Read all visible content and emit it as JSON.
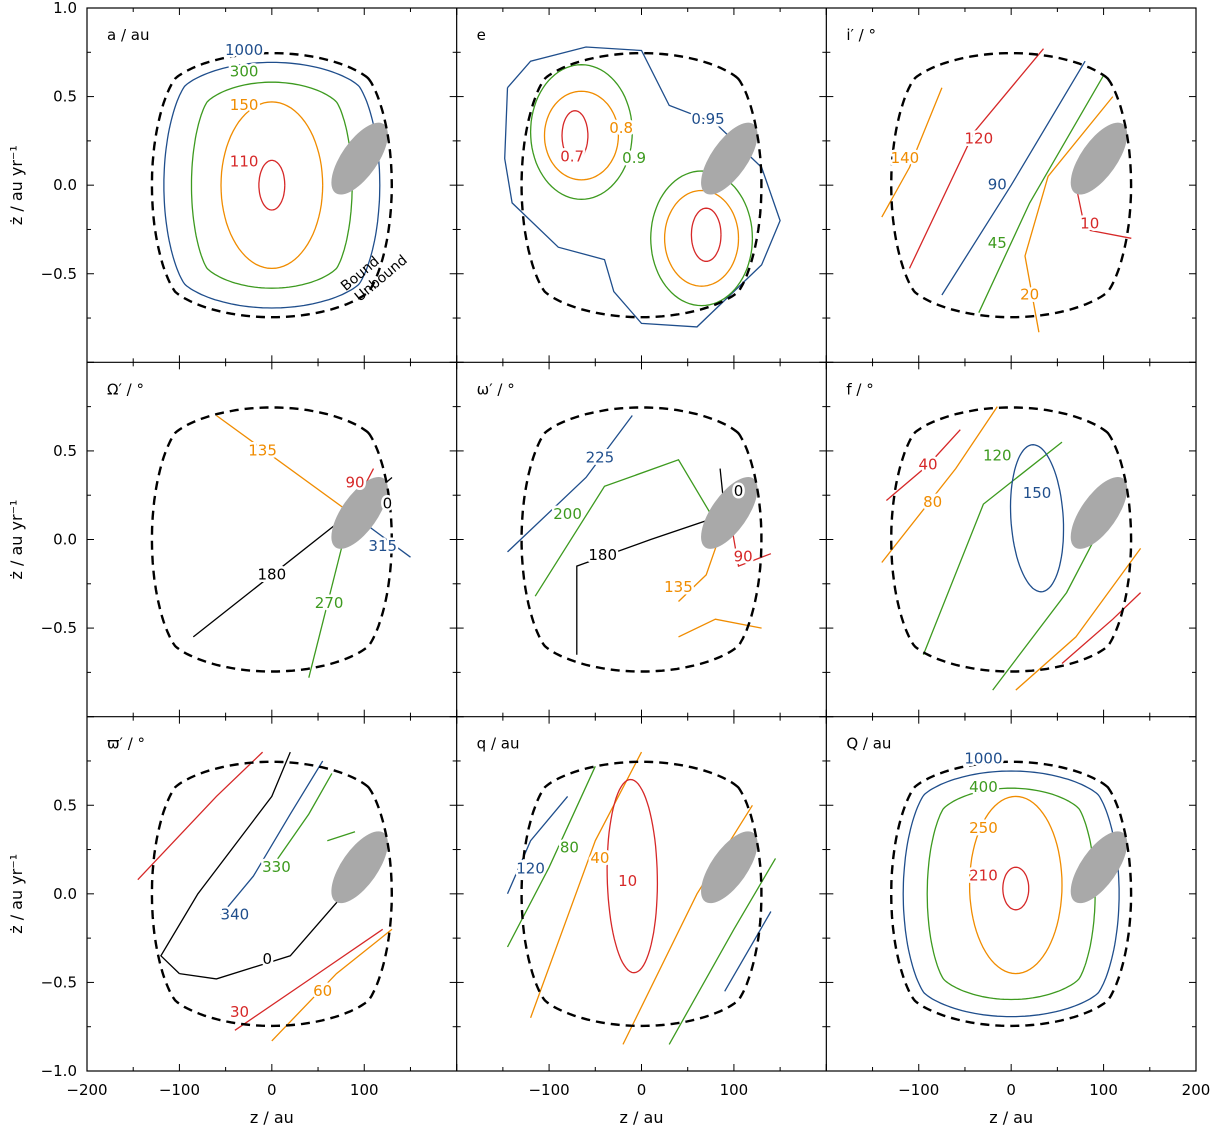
{
  "colors": {
    "red": "#d62828",
    "orange": "#f08c00",
    "green": "#3d9a1f",
    "blue": "#1f4e8c",
    "black": "#000000",
    "grey": "#a9a9a9"
  },
  "chart_data": {
    "type": "contour",
    "grid": "3x3",
    "x_axis": {
      "label": "z / au",
      "lim": [
        -200,
        200
      ],
      "ticks": [
        -200,
        -100,
        0,
        100,
        200
      ],
      "tick_labels": [
        "−200",
        "−100",
        "0",
        "100",
        "200"
      ]
    },
    "y_axis": {
      "label": "ż / au yr⁻¹",
      "lim": [
        -1.0,
        1.0
      ],
      "ticks": [
        -1.0,
        -0.5,
        0.0,
        0.5,
        1.0
      ],
      "tick_labels": [
        "−1.0",
        "−0.5",
        "0.0",
        "0.5",
        "1.0"
      ]
    },
    "boundary": {
      "style": "dashed",
      "labels": [
        "Bound",
        "Unbound"
      ]
    },
    "shaded_region": {
      "shape": "ellipse",
      "center": [
        95,
        0.15
      ],
      "color": "grey"
    },
    "panels": [
      {
        "title": "a / au",
        "contour_labels": [
          {
            "text": "1000",
            "color": "blue",
            "x": -30,
            "y": 0.76
          },
          {
            "text": "300",
            "color": "green",
            "x": -30,
            "y": 0.64
          },
          {
            "text": "150",
            "color": "orange",
            "x": -30,
            "y": 0.45
          },
          {
            "text": "110",
            "color": "red",
            "x": -30,
            "y": 0.13
          }
        ]
      },
      {
        "title": "e",
        "contour_labels": [
          {
            "text": "0.95",
            "color": "blue",
            "x": 72,
            "y": 0.37
          },
          {
            "text": "0.8",
            "color": "orange",
            "x": -22,
            "y": 0.32
          },
          {
            "text": "0.9",
            "color": "green",
            "x": -8,
            "y": 0.15
          },
          {
            "text": "0.7",
            "color": "red",
            "x": -75,
            "y": 0.16
          }
        ]
      },
      {
        "title": "i′ / °",
        "contour_labels": [
          {
            "text": "140",
            "color": "orange",
            "x": -115,
            "y": 0.15
          },
          {
            "text": "120",
            "color": "red",
            "x": -35,
            "y": 0.26
          },
          {
            "text": "90",
            "color": "blue",
            "x": -15,
            "y": 0.0
          },
          {
            "text": "45",
            "color": "green",
            "x": -15,
            "y": -0.33
          },
          {
            "text": "20",
            "color": "orange",
            "x": 20,
            "y": -0.62
          },
          {
            "text": "10",
            "color": "red",
            "x": 85,
            "y": -0.22
          }
        ]
      },
      {
        "title": "Ω′ / °",
        "contour_labels": [
          {
            "text": "135",
            "color": "orange",
            "x": -10,
            "y": 0.5
          },
          {
            "text": "90",
            "color": "red",
            "x": 90,
            "y": 0.32
          },
          {
            "text": "0",
            "color": "black",
            "x": 125,
            "y": 0.2
          },
          {
            "text": "315",
            "color": "blue",
            "x": 120,
            "y": -0.04
          },
          {
            "text": "180",
            "color": "black",
            "x": 0,
            "y": -0.2
          },
          {
            "text": "270",
            "color": "green",
            "x": 62,
            "y": -0.36
          }
        ]
      },
      {
        "title": "ω′ / °",
        "contour_labels": [
          {
            "text": "225",
            "color": "blue",
            "x": -45,
            "y": 0.46
          },
          {
            "text": "200",
            "color": "green",
            "x": -80,
            "y": 0.14
          },
          {
            "text": "0",
            "color": "black",
            "x": 105,
            "y": 0.27
          },
          {
            "text": "180",
            "color": "black",
            "x": -42,
            "y": -0.09
          },
          {
            "text": "90",
            "color": "red",
            "x": 110,
            "y": -0.1
          },
          {
            "text": "135",
            "color": "orange",
            "x": 40,
            "y": -0.27
          }
        ]
      },
      {
        "title": "f / °",
        "contour_labels": [
          {
            "text": "40",
            "color": "red",
            "x": -90,
            "y": 0.42
          },
          {
            "text": "80",
            "color": "orange",
            "x": -85,
            "y": 0.21
          },
          {
            "text": "120",
            "color": "green",
            "x": -15,
            "y": 0.47
          },
          {
            "text": "150",
            "color": "blue",
            "x": 28,
            "y": 0.26
          }
        ]
      },
      {
        "title": "ϖ′ / °",
        "contour_labels": [
          {
            "text": "330",
            "color": "green",
            "x": 5,
            "y": 0.15
          },
          {
            "text": "340",
            "color": "blue",
            "x": -40,
            "y": -0.12
          },
          {
            "text": "0",
            "color": "black",
            "x": -5,
            "y": -0.37
          },
          {
            "text": "60",
            "color": "orange",
            "x": 55,
            "y": -0.55
          },
          {
            "text": "30",
            "color": "red",
            "x": -35,
            "y": -0.67
          }
        ]
      },
      {
        "title": "q / au",
        "contour_labels": [
          {
            "text": "120",
            "color": "blue",
            "x": -120,
            "y": 0.14
          },
          {
            "text": "80",
            "color": "green",
            "x": -78,
            "y": 0.26
          },
          {
            "text": "40",
            "color": "orange",
            "x": -45,
            "y": 0.2
          },
          {
            "text": "10",
            "color": "red",
            "x": -15,
            "y": 0.07
          }
        ]
      },
      {
        "title": "Q / au",
        "contour_labels": [
          {
            "text": "1000",
            "color": "blue",
            "x": -30,
            "y": 0.76
          },
          {
            "text": "400",
            "color": "green",
            "x": -30,
            "y": 0.6
          },
          {
            "text": "250",
            "color": "orange",
            "x": -30,
            "y": 0.37
          },
          {
            "text": "210",
            "color": "red",
            "x": -30,
            "y": 0.1
          }
        ]
      }
    ]
  }
}
